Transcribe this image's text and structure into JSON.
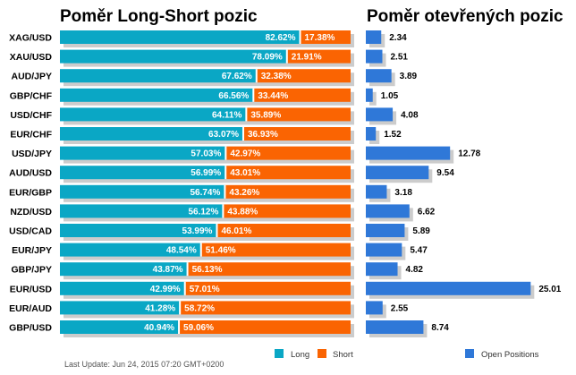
{
  "titles": {
    "left": "Poměr Long-Short pozic",
    "right": "Poměr otevřených pozic"
  },
  "footer": "Last Update: Jun 24, 2015 07:20 GMT+0200",
  "legend": {
    "long": "Long",
    "short": "Short",
    "open": "Open Positions"
  },
  "colors": {
    "long": "#0aa7c5",
    "short": "#fa6402",
    "open": "#2f78d8",
    "shadow": "#cccccc"
  },
  "chart_data": [
    {
      "type": "bar",
      "title": "Poměr Long-Short pozic",
      "stacked": true,
      "orientation": "horizontal",
      "categories": [
        "XAG/USD",
        "XAU/USD",
        "AUD/JPY",
        "GBP/CHF",
        "USD/CHF",
        "EUR/CHF",
        "USD/JPY",
        "AUD/USD",
        "EUR/GBP",
        "NZD/USD",
        "USD/CAD",
        "EUR/JPY",
        "GBP/JPY",
        "EUR/USD",
        "EUR/AUD",
        "GBP/USD"
      ],
      "series": [
        {
          "name": "Long",
          "values": [
            82.62,
            78.09,
            67.62,
            66.56,
            64.11,
            63.07,
            57.03,
            56.99,
            56.74,
            56.12,
            53.99,
            48.54,
            43.87,
            42.99,
            41.28,
            40.94
          ]
        },
        {
          "name": "Short",
          "values": [
            17.38,
            21.91,
            32.38,
            33.44,
            35.89,
            36.93,
            42.97,
            43.01,
            43.26,
            43.88,
            46.01,
            51.46,
            56.13,
            57.01,
            58.72,
            59.06
          ]
        }
      ],
      "xlim": [
        0,
        100
      ]
    },
    {
      "type": "bar",
      "title": "Poměr otevřených pozic",
      "orientation": "horizontal",
      "categories": [
        "XAG/USD",
        "XAU/USD",
        "AUD/JPY",
        "GBP/CHF",
        "USD/CHF",
        "EUR/CHF",
        "USD/JPY",
        "AUD/USD",
        "EUR/GBP",
        "NZD/USD",
        "USD/CAD",
        "EUR/JPY",
        "GBP/JPY",
        "EUR/USD",
        "EUR/AUD",
        "GBP/USD"
      ],
      "series": [
        {
          "name": "Open Positions",
          "values": [
            2.34,
            2.51,
            3.89,
            1.05,
            4.08,
            1.52,
            12.78,
            9.54,
            3.18,
            6.62,
            5.89,
            5.47,
            4.82,
            25.01,
            2.55,
            8.74
          ]
        }
      ]
    }
  ]
}
